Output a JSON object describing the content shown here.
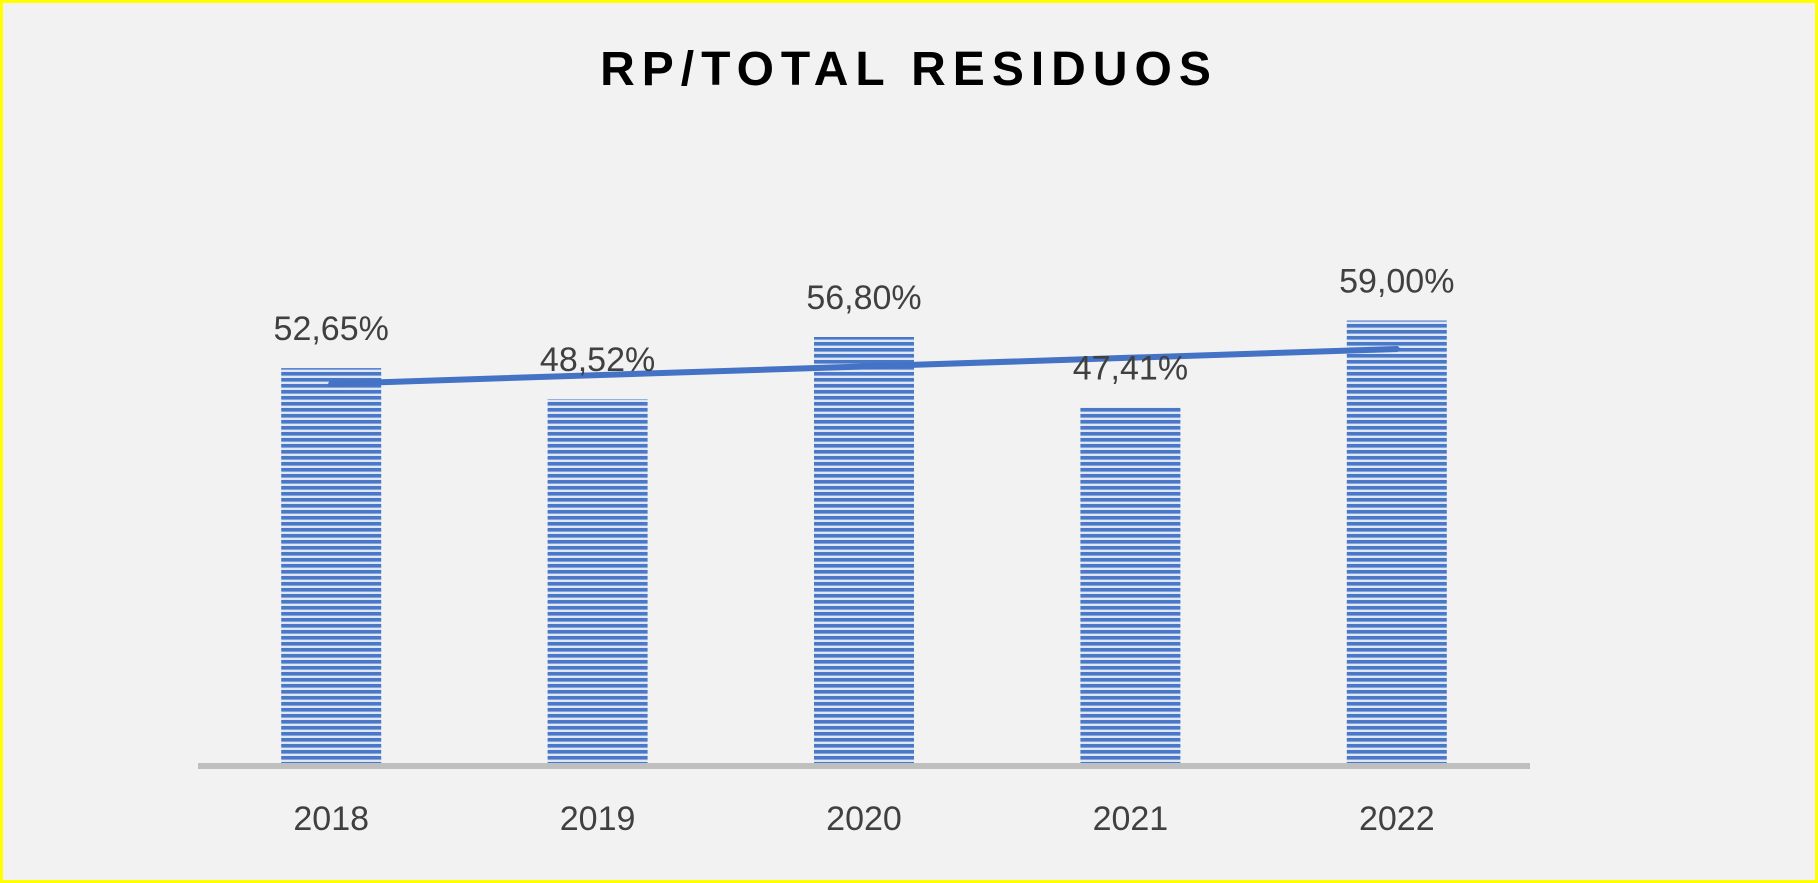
{
  "chart_data": {
    "type": "bar",
    "title": "RP/TOTAL RESIDUOS",
    "categories": [
      "2018",
      "2019",
      "2020",
      "2021",
      "2022"
    ],
    "values": [
      52.65,
      48.52,
      56.8,
      47.41,
      59.0
    ],
    "value_labels": [
      "52,65%",
      "48,52%",
      "56,80%",
      "47,41%",
      "59,00%"
    ],
    "trendline": {
      "type": "linear"
    },
    "xlabel": "",
    "ylabel": "",
    "ylim": [
      0,
      100
    ],
    "grid": false,
    "legend": "none",
    "colors": {
      "bar": "#4472c4",
      "trend": "#4472c4",
      "axis": "#bfbfbf",
      "border": "#ffff00"
    }
  }
}
